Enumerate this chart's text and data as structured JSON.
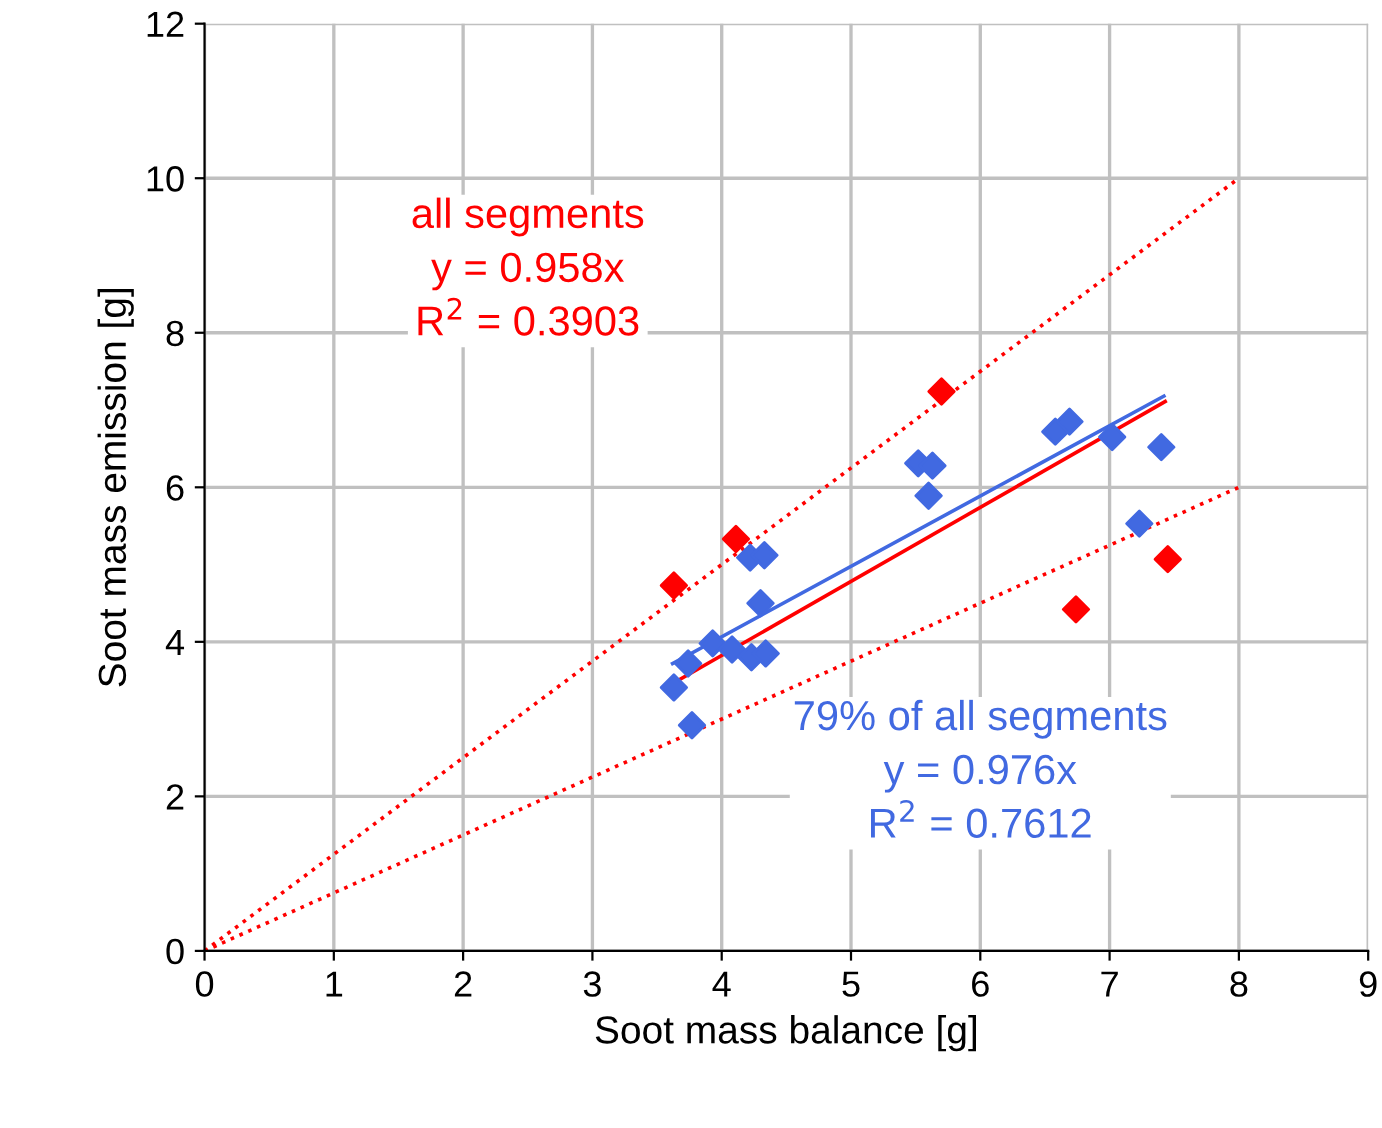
{
  "chart_data": {
    "type": "scatter",
    "xlabel": "Soot mass balance [g]",
    "ylabel": "Soot mass emission [g]",
    "xlim": [
      0,
      9
    ],
    "ylim": [
      0,
      12
    ],
    "xticks": [
      0,
      1,
      2,
      3,
      4,
      5,
      6,
      7,
      8,
      9
    ],
    "yticks": [
      0,
      2,
      4,
      6,
      8,
      10,
      12
    ],
    "grid": true,
    "marker": "none",
    "series": [
      {
        "marker": "diamond",
        "color": "#ff0000",
        "x": [
          3.63,
          4.11,
          5.7,
          6.74,
          7.45
        ],
        "values": [
          4.73,
          5.33,
          7.24,
          4.42,
          5.07
        ]
      },
      {
        "marker": "diamond",
        "color": "#4169e1",
        "x": [
          3.63,
          3.74,
          3.77,
          3.93,
          4.08,
          4.23,
          4.34,
          4.3,
          4.22,
          4.33,
          5.52,
          5.63,
          5.6,
          6.58,
          6.69,
          7.02,
          7.4,
          7.23
        ],
        "values": [
          3.41,
          3.72,
          2.92,
          3.98,
          3.9,
          3.8,
          3.85,
          4.5,
          5.09,
          5.12,
          6.31,
          6.28,
          5.89,
          6.72,
          6.85,
          6.65,
          6.52,
          5.53
        ]
      },
      {
        "type": "line",
        "color": "#ff0000",
        "line_style": "solid",
        "x": [
          3.62,
          7.43
        ],
        "values": [
          3.46,
          7.11
        ]
      },
      {
        "type": "line",
        "color": "#4169e1",
        "line_style": "solid",
        "x": [
          3.62,
          7.42
        ],
        "values": [
          3.72,
          7.18
        ]
      },
      {
        "type": "line",
        "color": "#ff0000",
        "line_style": "dotted",
        "x": [
          0,
          8
        ],
        "values": [
          0,
          10
        ]
      },
      {
        "type": "line",
        "color": "#ff0000",
        "line_style": "dotted",
        "x": [
          0,
          8
        ],
        "values": [
          0,
          6
        ]
      }
    ],
    "annotations": [
      "all segments\ny = 0.958x\nR$^{2}$ = 0.3903",
      "79% of all segments\ny = 0.976x\nR$^{2}$ = 0.7612"
    ]
  }
}
